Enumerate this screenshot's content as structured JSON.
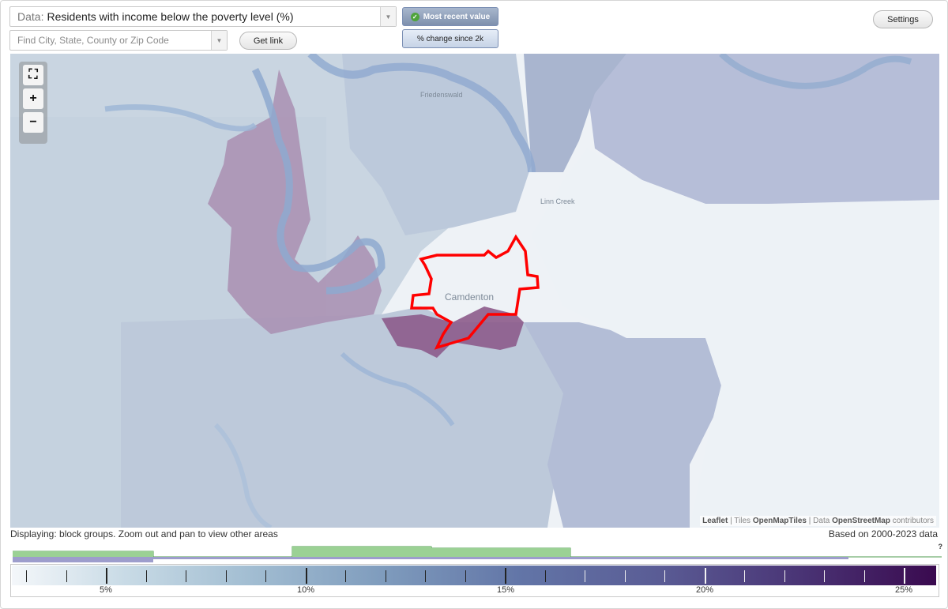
{
  "data_select": {
    "prefix": "Data:",
    "value": "Residents with income below the poverty level (%)"
  },
  "search": {
    "placeholder": "Find City, State, County or Zip Code"
  },
  "buttons": {
    "get_link": "Get link",
    "settings": "Settings"
  },
  "view_toggle": {
    "most_recent": "Most recent value",
    "change": "% change since 2k"
  },
  "map": {
    "places": {
      "friedenswald": "Friedenswald",
      "linn_creek": "Linn Creek",
      "camdenton": "Camdenton"
    },
    "attribution": {
      "leaflet": "Leaflet",
      "sep1": "| Tiles",
      "tiles": "OpenMapTiles",
      "sep2": "| Data",
      "data": "OpenStreetMap",
      "suffix": "contributors"
    },
    "highlight_color": "#ff0000"
  },
  "status": {
    "displaying": "Displaying: block groups. Zoom out and pan to view other areas",
    "based_on": "Based on 2000-2023 data"
  },
  "histogram": {
    "unknown_marker": "?"
  },
  "legend": {
    "tick_labels": [
      "5%",
      "10%",
      "15%",
      "20%",
      "25%"
    ],
    "colors": {
      "low": "#f4f7fa",
      "mid": "#6275a7",
      "high": "#3a0a4f"
    }
  },
  "zoom": {
    "fit": "⛶",
    "in": "+",
    "out": "−"
  }
}
